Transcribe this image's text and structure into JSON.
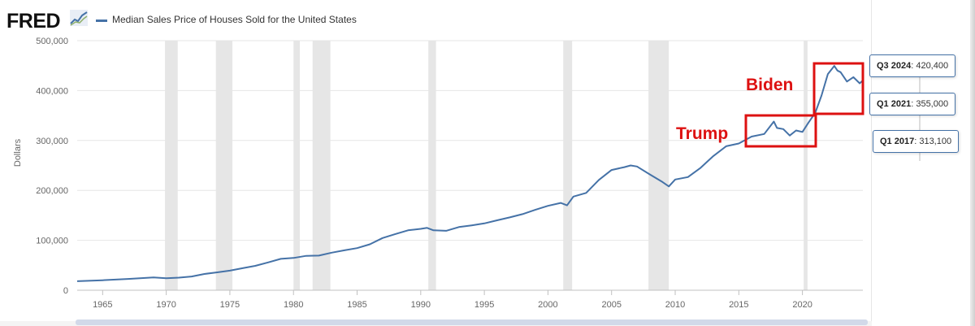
{
  "brand": {
    "name": "FRED"
  },
  "legend": {
    "label": "Median Sales Price of Houses Sold for the United States"
  },
  "chart_data": {
    "type": "line",
    "ylabel": "Dollars",
    "ylim": [
      0,
      500000
    ],
    "xlim": [
      1963,
      2024.75
    ],
    "y_ticks": [
      0,
      100000,
      200000,
      300000,
      400000,
      500000
    ],
    "y_tick_labels": [
      "0",
      "100,000",
      "200,000",
      "300,000",
      "400,000",
      "500,000"
    ],
    "x_ticks": [
      1965,
      1970,
      1975,
      1980,
      1985,
      1990,
      1995,
      2000,
      2005,
      2010,
      2015,
      2020
    ],
    "x_tick_labels": [
      "1965",
      "1970",
      "1975",
      "1980",
      "1985",
      "1990",
      "1995",
      "2000",
      "2005",
      "2010",
      "2015",
      "2020"
    ],
    "grid": true,
    "recessions": [
      [
        1969.9,
        1970.9
      ],
      [
        1973.9,
        1975.2
      ],
      [
        1980.0,
        1980.5
      ],
      [
        1981.5,
        1982.9
      ],
      [
        1990.6,
        1991.2
      ],
      [
        2001.2,
        2001.9
      ],
      [
        2007.9,
        2009.5
      ],
      [
        2020.1,
        2020.4
      ]
    ],
    "series": [
      {
        "name": "Median Sales Price of Houses Sold for the United States",
        "color": "#4572a7",
        "x": [
          1963.0,
          1965.0,
          1967.0,
          1969.0,
          1970.0,
          1971.0,
          1972.0,
          1973.0,
          1974.0,
          1975.0,
          1976.0,
          1977.0,
          1978.0,
          1979.0,
          1980.0,
          1981.0,
          1982.0,
          1983.0,
          1984.0,
          1985.0,
          1986.0,
          1987.0,
          1988.0,
          1989.0,
          1990.0,
          1990.5,
          1991.0,
          1992.0,
          1993.0,
          1994.0,
          1995.0,
          1996.0,
          1997.0,
          1998.0,
          1999.0,
          2000.0,
          2001.0,
          2001.5,
          2002.0,
          2003.0,
          2004.0,
          2005.0,
          2006.0,
          2006.5,
          2007.0,
          2008.0,
          2009.0,
          2009.5,
          2010.0,
          2011.0,
          2012.0,
          2013.0,
          2014.0,
          2015.0,
          2016.0,
          2017.0,
          2017.75,
          2018.0,
          2018.5,
          2019.0,
          2019.5,
          2020.0,
          2020.5,
          2021.0,
          2021.5,
          2022.0,
          2022.5,
          2022.75,
          2023.0,
          2023.5,
          2024.0,
          2024.5,
          2024.75
        ],
        "y": [
          18000,
          20000,
          22600,
          25600,
          23900,
          25200,
          27600,
          32500,
          35900,
          39300,
          44200,
          48800,
          55700,
          62900,
          64600,
          68900,
          69300,
          75300,
          79900,
          84300,
          92000,
          104500,
          112500,
          120000,
          122900,
          125000,
          120000,
          119000,
          126500,
          130000,
          133900,
          140000,
          146000,
          152500,
          161000,
          169000,
          175000,
          170000,
          187600,
          195000,
          221000,
          240900,
          246500,
          250000,
          247900,
          232100,
          216700,
          208000,
          221800,
          226700,
          245200,
          268900,
          288500,
          294000,
          307800,
          313100,
          337900,
          325000,
          322800,
          310000,
          320000,
          317100,
          336700,
          355000,
          390000,
          433100,
          449300,
          440000,
          436800,
          418000,
          426800,
          414500,
          420400
        ]
      }
    ]
  },
  "tooltips": [
    {
      "date": "Q3 2024",
      "value": "420,400"
    },
    {
      "date": "Q1 2021",
      "value": "355,000"
    },
    {
      "date": "Q1 2017",
      "value": "313,100"
    }
  ],
  "annotations": [
    {
      "label": "Trump",
      "color": "#dd1111"
    },
    {
      "label": "Biden",
      "color": "#dd1111"
    }
  ],
  "colors": {
    "line": "#4572a7",
    "recession": "#e6e6e6",
    "annotation": "#dd1111"
  }
}
